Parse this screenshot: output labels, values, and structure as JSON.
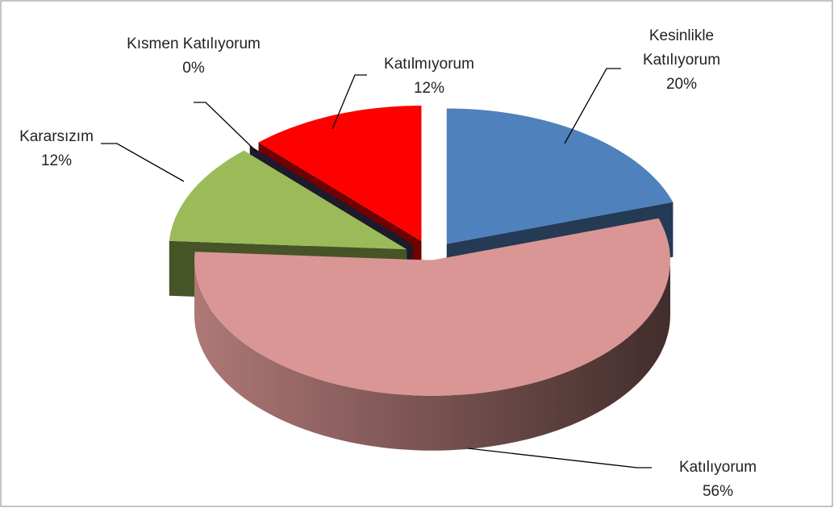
{
  "chart_data": {
    "type": "pie3d",
    "categories": [
      "Kesinlikle Katılıyorum",
      "Katılıyorum",
      "Kararsızım",
      "Kısmen Katılıyorum",
      "Katılmıyorum"
    ],
    "values": [
      20,
      56,
      12,
      0,
      12
    ],
    "value_labels": [
      "20%",
      "56%",
      "12%",
      "0%",
      "12%"
    ],
    "colors": [
      "#4f81bd",
      "#d99694",
      "#9bbb59",
      "#3f3a60",
      "#ff0000"
    ]
  }
}
